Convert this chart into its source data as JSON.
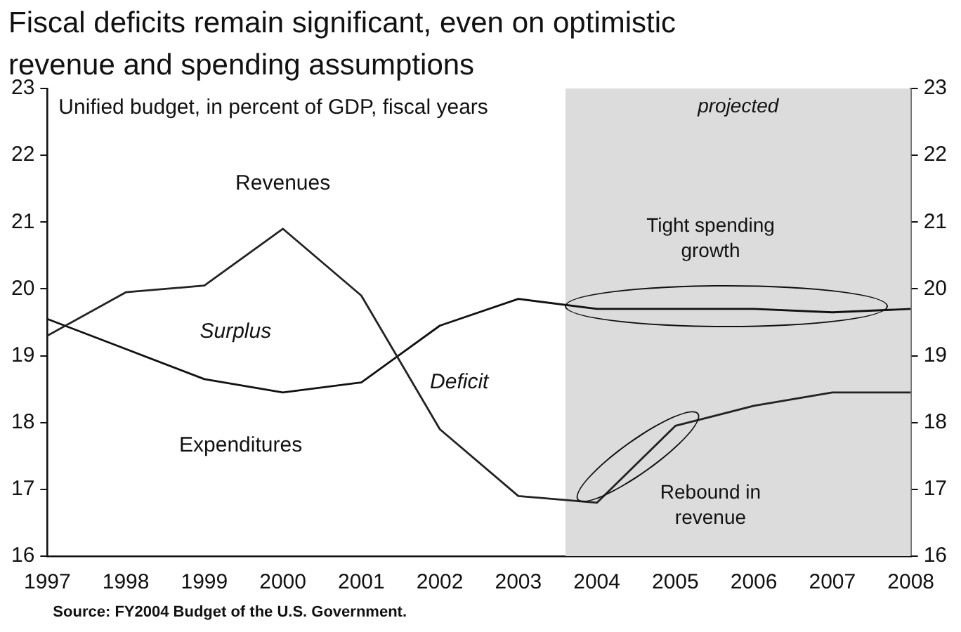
{
  "chart_data": {
    "type": "line",
    "title": "Fiscal deficits remain significant, even on optimistic revenue and spending assumptions",
    "subtitle": "Unified budget, in percent of GDP, fiscal years",
    "x": [
      1997,
      1998,
      1999,
      2000,
      2001,
      2002,
      2003,
      2004,
      2005,
      2006,
      2007,
      2008
    ],
    "series": [
      {
        "name": "Revenues",
        "color": "#222222",
        "values": [
          19.3,
          19.95,
          20.05,
          20.9,
          19.9,
          17.9,
          16.9,
          16.8,
          17.95,
          18.25,
          18.45,
          18.45
        ]
      },
      {
        "name": "Expenditures",
        "color": "#111111",
        "values": [
          19.55,
          19.1,
          18.65,
          18.45,
          18.6,
          19.45,
          19.85,
          19.7,
          19.7,
          19.7,
          19.65,
          19.7
        ]
      }
    ],
    "xlim": [
      1997,
      2008
    ],
    "xticks": [
      1997,
      1998,
      1999,
      2000,
      2001,
      2002,
      2003,
      2004,
      2005,
      2006,
      2007,
      2008
    ],
    "ylim": [
      16,
      23
    ],
    "yticks": [
      16,
      17,
      18,
      19,
      20,
      21,
      22,
      23
    ],
    "y2lim": [
      16,
      23
    ],
    "y2ticks": [
      16,
      17,
      18,
      19,
      20,
      21,
      22,
      23
    ],
    "bands": [
      {
        "axis": "x",
        "from": 2003.6,
        "to": 2008,
        "label": "projected",
        "color": "#dcdcdc"
      }
    ],
    "annotations": [
      "Surplus",
      "Deficit",
      "Tight spending growth",
      "Rebound in revenue",
      "Source: FY2004 Budget of the U.S. Government."
    ],
    "grid": false,
    "legend": false,
    "marker": "none",
    "line_style": "solid"
  }
}
